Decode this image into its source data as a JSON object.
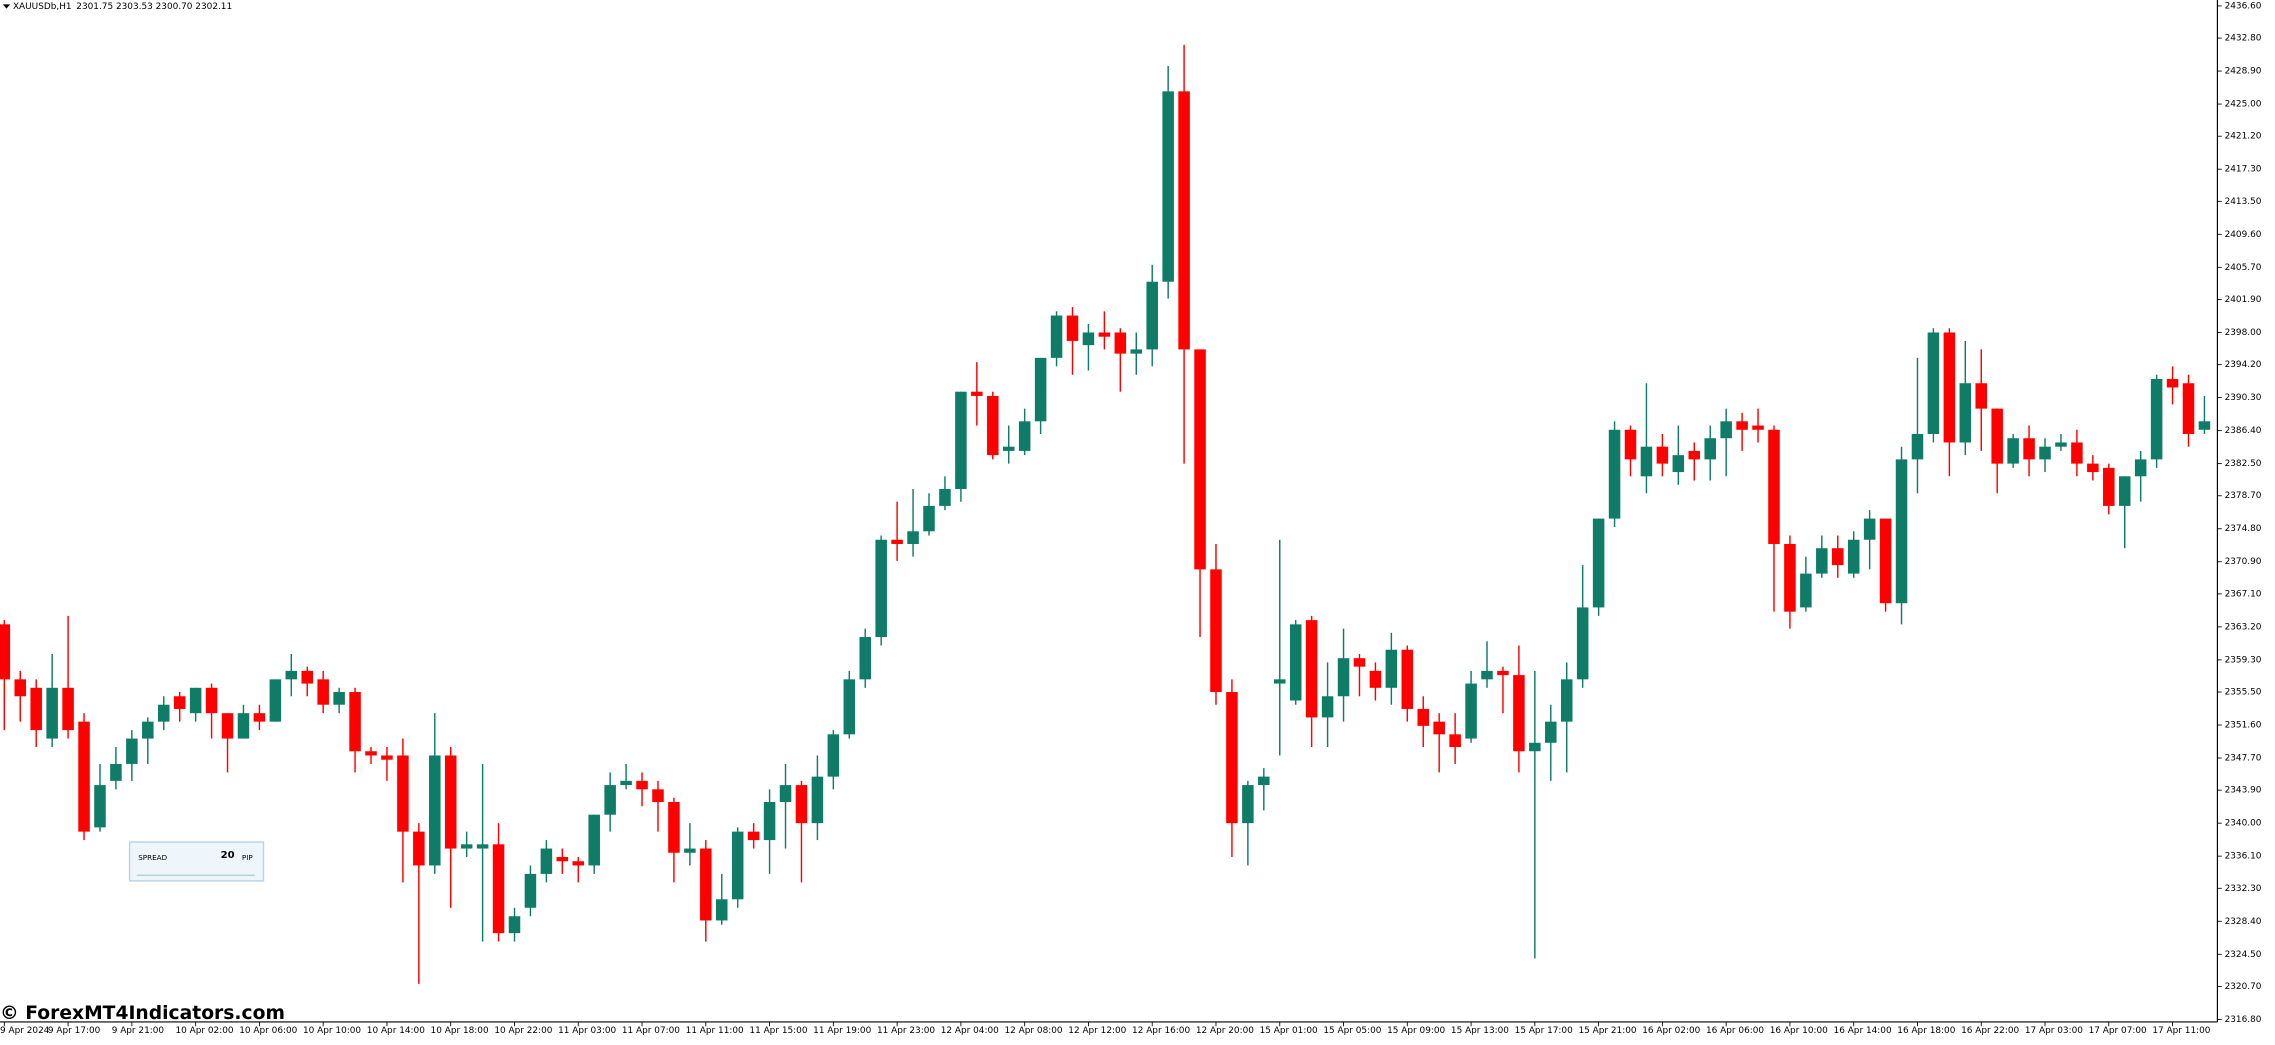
{
  "chart_data": {
    "type": "candlestick",
    "title": "XAUUSDb,H1",
    "quote": "2301.75 2303.53 2300.70 2302.11",
    "up_color": "#0e7c66",
    "down_color": "#ff0000",
    "grid": false,
    "categories": [
      "9 Apr 2024",
      null,
      null,
      null,
      "9 Apr 17:00",
      null,
      null,
      null,
      "9 Apr 21:00",
      null,
      null,
      null,
      "10 Apr 02:00",
      null,
      null,
      null,
      "10 Apr 06:00",
      null,
      null,
      null,
      "10 Apr 10:00",
      null,
      null,
      null,
      "10 Apr 14:00",
      null,
      null,
      null,
      "10 Apr 18:00",
      null,
      null,
      null,
      "10 Apr 22:00",
      null,
      null,
      null,
      "11 Apr 03:00",
      null,
      null,
      null,
      "11 Apr 07:00",
      null,
      null,
      null,
      "11 Apr 11:00",
      null,
      null,
      null,
      "11 Apr 15:00",
      null,
      null,
      null,
      "11 Apr 19:00",
      null,
      null,
      null,
      "11 Apr 23:00",
      null,
      null,
      null,
      "12 Apr 04:00",
      null,
      null,
      null,
      "12 Apr 08:00",
      null,
      null,
      null,
      "12 Apr 12:00",
      null,
      null,
      null,
      "12 Apr 16:00",
      null,
      null,
      null,
      "12 Apr 20:00",
      null,
      null,
      null,
      "15 Apr 01:00",
      null,
      null,
      null,
      "15 Apr 05:00",
      null,
      null,
      null,
      "15 Apr 09:00",
      null,
      null,
      null,
      "15 Apr 13:00",
      null,
      null,
      null,
      "15 Apr 17:00",
      null,
      null,
      null,
      "15 Apr 21:00",
      null,
      null,
      null,
      "16 Apr 02:00",
      null,
      null,
      null,
      "16 Apr 06:00",
      null,
      null,
      null,
      "16 Apr 10:00",
      null,
      null,
      null,
      "16 Apr 14:00",
      null,
      null,
      null,
      "16 Apr 18:00",
      null,
      null,
      null,
      "16 Apr 22:00",
      null,
      null,
      null,
      "17 Apr 03:00",
      null,
      null,
      null,
      "17 Apr 07:00",
      null,
      null,
      null,
      "17 Apr 11:00",
      null,
      null
    ],
    "open": [
      2363.5,
      2357,
      2356,
      2350,
      2356,
      2352,
      2339.5,
      2345,
      2347,
      2350,
      2352,
      2355,
      2353,
      2356,
      2353,
      2350,
      2353,
      2352,
      2357,
      2358,
      2357,
      2354,
      2355.5,
      2348.5,
      2348,
      2348,
      2339,
      2335,
      2348,
      2337,
      2337,
      2337.5,
      2327,
      2330,
      2334,
      2336,
      2335.5,
      2335,
      2341,
      2344.5,
      2345,
      2344,
      2342.5,
      2336.5,
      2337,
      2328.5,
      2331,
      2339,
      2338,
      2342.5,
      2344.5,
      2340,
      2345.5,
      2350.5,
      2357,
      2362,
      2373.5,
      2373,
      2374.5,
      2377.5,
      2379.5,
      2391,
      2390.5,
      2384,
      2384,
      2387.5,
      2395,
      2400,
      2396.5,
      2398,
      2398,
      2395.5,
      2396,
      2404,
      2426.5,
      2396,
      2370,
      2355.5,
      2340,
      2344.5,
      2356.5,
      2354.5,
      2364,
      2352.5,
      2355,
      2359.5,
      2358,
      2356,
      2360.5,
      2353.5,
      2352,
      2350.5,
      2350,
      2357,
      2358,
      2357.5,
      2348.5,
      2349.5,
      2352,
      2357,
      2365.5,
      2376,
      2386.5,
      2381,
      2384.5,
      2381.5,
      2384,
      2383,
      2385.5,
      2387.5,
      2387,
      2386.5,
      2373,
      2365.5,
      2369.5,
      2372.5,
      2369.5,
      2373.5,
      2376,
      2366,
      2383,
      2386,
      2398,
      2385,
      2392,
      2389,
      2382.5,
      2385.5,
      2383,
      2384.5,
      2385,
      2382.5,
      2382,
      2377.5,
      2381,
      2383,
      2392.5,
      2392,
      2386.5
    ],
    "high": [
      2364,
      2358,
      2357,
      2360,
      2364.5,
      2353,
      2347,
      2349,
      2351,
      2352.5,
      2355,
      2355.5,
      2356,
      2356.5,
      2353,
      2354,
      2354,
      2357,
      2360,
      2358.5,
      2358,
      2356,
      2356,
      2349,
      2349,
      2350,
      2340,
      2353,
      2349,
      2339,
      2347,
      2340,
      2330,
      2335,
      2338,
      2337,
      2336,
      2341,
      2346,
      2347,
      2346,
      2345,
      2343,
      2340,
      2338,
      2334,
      2339.5,
      2340,
      2344,
      2347,
      2345,
      2348,
      2351,
      2358,
      2363,
      2374,
      2378,
      2379.5,
      2379,
      2381,
      2391,
      2394.5,
      2391,
      2387,
      2389,
      2395,
      2400.5,
      2401,
      2399,
      2400.5,
      2398.5,
      2398,
      2406,
      2429.5,
      2432,
      2396,
      2373,
      2357,
      2345,
      2346.5,
      2373.5,
      2364,
      2364.5,
      2359,
      2363,
      2360,
      2359,
      2362.5,
      2361,
      2355,
      2353,
      2353,
      2358,
      2361.5,
      2358.5,
      2361,
      2358,
      2354,
      2359,
      2370.5,
      2376,
      2387.5,
      2387,
      2392,
      2386,
      2387,
      2385,
      2387,
      2389,
      2388.5,
      2389,
      2387,
      2374,
      2371.5,
      2374,
      2374,
      2374.5,
      2377,
      2376,
      2384.5,
      2395,
      2398.5,
      2398.5,
      2397,
      2396,
      2389,
      2386,
      2387,
      2385.5,
      2386,
      2386.5,
      2383.5,
      2382.5,
      2381,
      2384,
      2393,
      2394,
      2393,
      2390.5
    ],
    "low": [
      2351,
      2352,
      2349,
      2349,
      2350,
      2338,
      2339,
      2344,
      2345,
      2347,
      2351,
      2352,
      2352,
      2350,
      2346,
      2350,
      2351,
      2352,
      2355,
      2355,
      2353,
      2353,
      2346,
      2347,
      2345,
      2333,
      2321,
      2334,
      2330,
      2336,
      2326,
      2326,
      2326,
      2329,
      2333,
      2334,
      2333,
      2334,
      2339,
      2344,
      2342,
      2339,
      2333,
      2335,
      2326,
      2328,
      2330,
      2337,
      2334,
      2337,
      2333,
      2338,
      2344,
      2350,
      2356,
      2361,
      2371,
      2371.5,
      2374,
      2377,
      2378,
      2387,
      2383,
      2382.5,
      2383.5,
      2386,
      2394,
      2393,
      2393.5,
      2396,
      2391,
      2393,
      2394,
      2402,
      2382.5,
      2362,
      2354,
      2336,
      2335,
      2341.5,
      2348,
      2354,
      2349,
      2349,
      2352,
      2355,
      2354.5,
      2354,
      2352,
      2349,
      2346,
      2347,
      2349.5,
      2356,
      2353,
      2346,
      2324,
      2345,
      2346,
      2356,
      2364.5,
      2375,
      2381,
      2379,
      2381,
      2380,
      2380.5,
      2380.5,
      2381,
      2384,
      2385,
      2365,
      2363,
      2365,
      2369,
      2369,
      2369,
      2370,
      2365,
      2363.5,
      2379,
      2385,
      2381,
      2383.5,
      2384,
      2379,
      2382,
      2381,
      2381.5,
      2384,
      2381,
      2380.5,
      2376.5,
      2372.5,
      2378,
      2382,
      2389.5,
      2384.5,
      2386
    ],
    "close": [
      2357,
      2355,
      2351,
      2356,
      2351,
      2339,
      2344.5,
      2347,
      2350,
      2352,
      2354,
      2353.5,
      2356,
      2353,
      2350,
      2353,
      2352,
      2357,
      2358,
      2356.5,
      2354,
      2355.5,
      2348.5,
      2348,
      2347.5,
      2339,
      2335,
      2348,
      2337,
      2337.5,
      2337.5,
      2327,
      2329,
      2334,
      2337,
      2335.5,
      2335,
      2341,
      2344.5,
      2345,
      2344,
      2342.5,
      2336.5,
      2337,
      2328.5,
      2331,
      2339,
      2338,
      2342.5,
      2344.5,
      2340,
      2345.5,
      2350.5,
      2357,
      2362,
      2373.5,
      2373,
      2374.5,
      2377.5,
      2379.5,
      2391,
      2390.5,
      2383.5,
      2384.5,
      2387.5,
      2395,
      2400,
      2397,
      2398,
      2397.5,
      2395.5,
      2396,
      2404,
      2426.5,
      2396,
      2370,
      2355.5,
      2340,
      2344.5,
      2345.5,
      2357,
      2363.5,
      2352.5,
      2355,
      2359.5,
      2358.5,
      2356,
      2360.5,
      2353.5,
      2351.5,
      2350.5,
      2349,
      2356.5,
      2358,
      2357.5,
      2348.5,
      2349.5,
      2352,
      2357,
      2365.5,
      2376,
      2386.5,
      2383,
      2384.5,
      2382.5,
      2383.5,
      2383,
      2385.5,
      2387.5,
      2386.5,
      2386.5,
      2373,
      2365,
      2369.5,
      2372.5,
      2370.5,
      2373.5,
      2376,
      2366,
      2383,
      2386,
      2398,
      2385,
      2392,
      2389,
      2382.5,
      2385.5,
      2383,
      2384.5,
      2385,
      2382.5,
      2381.5,
      2377.5,
      2381,
      2383,
      2392.5,
      2391.5,
      2386,
      2387.5
    ],
    "ylim": [
      2316.5,
      2437.3
    ],
    "yticks": [
      {
        "value": 2436.6,
        "label": "2436.60"
      },
      {
        "value": 2432.8,
        "label": "2432.80"
      },
      {
        "value": 2428.9,
        "label": "2428.90"
      },
      {
        "value": 2425.0,
        "label": "2425.00"
      },
      {
        "value": 2421.2,
        "label": "2421.20"
      },
      {
        "value": 2417.3,
        "label": "2417.30"
      },
      {
        "value": 2413.5,
        "label": "2413.50"
      },
      {
        "value": 2409.6,
        "label": "2409.60"
      },
      {
        "value": 2405.7,
        "label": "2405.70"
      },
      {
        "value": 2401.9,
        "label": "2401.90"
      },
      {
        "value": 2398.0,
        "label": "2398.00"
      },
      {
        "value": 2394.2,
        "label": "2394.20"
      },
      {
        "value": 2390.3,
        "label": "2390.30"
      },
      {
        "value": 2386.4,
        "label": "2386.40"
      },
      {
        "value": 2382.5,
        "label": "2382.50"
      },
      {
        "value": 2378.7,
        "label": "2378.70"
      },
      {
        "value": 2374.8,
        "label": "2374.80"
      },
      {
        "value": 2370.9,
        "label": "2370.90"
      },
      {
        "value": 2367.1,
        "label": "2367.10"
      },
      {
        "value": 2363.2,
        "label": "2363.20"
      },
      {
        "value": 2359.3,
        "label": "2359.30"
      },
      {
        "value": 2355.5,
        "label": "2355.50"
      },
      {
        "value": 2351.6,
        "label": "2351.60"
      },
      {
        "value": 2347.7,
        "label": "2347.70"
      },
      {
        "value": 2343.9,
        "label": "2343.90"
      },
      {
        "value": 2340.0,
        "label": "2340.00"
      },
      {
        "value": 2336.1,
        "label": "2336.10"
      },
      {
        "value": 2332.3,
        "label": "2332.30"
      },
      {
        "value": 2328.4,
        "label": "2328.40"
      },
      {
        "value": 2324.5,
        "label": "2324.50"
      },
      {
        "value": 2320.7,
        "label": "2320.70"
      },
      {
        "value": 2316.8,
        "label": "2316.80"
      }
    ]
  },
  "spread_widget": {
    "label": "SPREAD",
    "value": 20,
    "unit": "PIP"
  },
  "watermark": "© ForexMT4Indicators.com"
}
